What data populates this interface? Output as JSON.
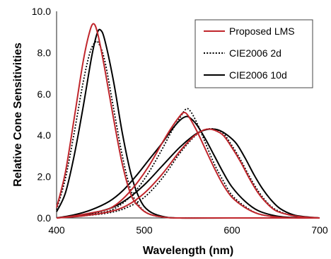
{
  "chart_data": {
    "type": "line",
    "title": "",
    "xlabel": "Wavelength (nm)",
    "ylabel": "Relative Cone Sensitivities",
    "xlim": [
      400,
      700
    ],
    "ylim": [
      0,
      10
    ],
    "xticks": [
      400,
      500,
      600,
      700
    ],
    "yticks": [
      0,
      2,
      4,
      6,
      8,
      10
    ],
    "xtick_labels": [
      "400",
      "500",
      "600",
      "700"
    ],
    "ytick_labels": [
      "0.0",
      "2.0",
      "4.0",
      "6.0",
      "8.0",
      "10.0"
    ],
    "grid": false,
    "legend_position": "top-right",
    "series": [
      {
        "name": "Proposed LMS",
        "color": "#c0262c",
        "style": "solid",
        "curves": [
          [
            [
              400,
              0.5
            ],
            [
              410,
              2.2
            ],
            [
              420,
              4.8
            ],
            [
              430,
              7.5
            ],
            [
              437,
              8.9
            ],
            [
              442,
              9.4
            ],
            [
              447,
              8.9
            ],
            [
              455,
              7.2
            ],
            [
              465,
              4.8
            ],
            [
              475,
              2.6
            ],
            [
              485,
              1.1
            ],
            [
              495,
              0.5
            ],
            [
              505,
              0.2
            ],
            [
              520,
              0.05
            ],
            [
              540,
              0.0
            ],
            [
              600,
              0.0
            ],
            [
              700,
              0.0
            ]
          ],
          [
            [
              400,
              0.0
            ],
            [
              420,
              0.1
            ],
            [
              440,
              0.25
            ],
            [
              460,
              0.45
            ],
            [
              475,
              0.9
            ],
            [
              490,
              1.6
            ],
            [
              505,
              2.5
            ],
            [
              520,
              3.6
            ],
            [
              530,
              4.3
            ],
            [
              540,
              4.9
            ],
            [
              545,
              5.1
            ],
            [
              550,
              4.95
            ],
            [
              560,
              4.2
            ],
            [
              570,
              3.3
            ],
            [
              580,
              2.4
            ],
            [
              590,
              1.6
            ],
            [
              600,
              1.0
            ],
            [
              615,
              0.5
            ],
            [
              630,
              0.2
            ],
            [
              650,
              0.05
            ],
            [
              670,
              0.0
            ],
            [
              700,
              0.0
            ]
          ],
          [
            [
              400,
              0.0
            ],
            [
              430,
              0.1
            ],
            [
              460,
              0.3
            ],
            [
              480,
              0.6
            ],
            [
              500,
              1.2
            ],
            [
              520,
              2.1
            ],
            [
              540,
              3.2
            ],
            [
              555,
              3.9
            ],
            [
              565,
              4.2
            ],
            [
              572,
              4.3
            ],
            [
              580,
              4.25
            ],
            [
              590,
              4.0
            ],
            [
              600,
              3.4
            ],
            [
              610,
              2.7
            ],
            [
              620,
              1.9
            ],
            [
              630,
              1.2
            ],
            [
              640,
              0.7
            ],
            [
              650,
              0.35
            ],
            [
              665,
              0.15
            ],
            [
              680,
              0.05
            ],
            [
              700,
              0.0
            ]
          ]
        ]
      },
      {
        "name": "CIE2006 2d",
        "color": "#000000",
        "style": "dotted",
        "curves": [
          [
            [
              400,
              0.4
            ],
            [
              410,
              1.9
            ],
            [
              420,
              4.1
            ],
            [
              430,
              6.5
            ],
            [
              438,
              8.0
            ],
            [
              444,
              8.5
            ],
            [
              448,
              8.45
            ],
            [
              455,
              7.6
            ],
            [
              465,
              5.3
            ],
            [
              475,
              3.0
            ],
            [
              485,
              1.3
            ],
            [
              495,
              0.55
            ],
            [
              505,
              0.2
            ],
            [
              520,
              0.05
            ],
            [
              540,
              0.0
            ],
            [
              600,
              0.0
            ],
            [
              700,
              0.0
            ]
          ],
          [
            [
              400,
              0.0
            ],
            [
              420,
              0.1
            ],
            [
              440,
              0.2
            ],
            [
              460,
              0.35
            ],
            [
              475,
              0.7
            ],
            [
              490,
              1.3
            ],
            [
              505,
              2.2
            ],
            [
              520,
              3.3
            ],
            [
              530,
              4.1
            ],
            [
              540,
              4.8
            ],
            [
              547,
              5.25
            ],
            [
              552,
              5.2
            ],
            [
              560,
              4.6
            ],
            [
              570,
              3.6
            ],
            [
              580,
              2.6
            ],
            [
              590,
              1.8
            ],
            [
              600,
              1.1
            ],
            [
              615,
              0.55
            ],
            [
              630,
              0.2
            ],
            [
              650,
              0.05
            ],
            [
              670,
              0.0
            ],
            [
              700,
              0.0
            ]
          ],
          [
            [
              400,
              0.0
            ],
            [
              430,
              0.1
            ],
            [
              460,
              0.25
            ],
            [
              480,
              0.5
            ],
            [
              500,
              1.0
            ],
            [
              520,
              1.9
            ],
            [
              540,
              3.1
            ],
            [
              555,
              3.85
            ],
            [
              565,
              4.2
            ],
            [
              572,
              4.3
            ],
            [
              580,
              4.3
            ],
            [
              590,
              4.1
            ],
            [
              600,
              3.5
            ],
            [
              610,
              2.8
            ],
            [
              620,
              2.0
            ],
            [
              630,
              1.3
            ],
            [
              640,
              0.75
            ],
            [
              650,
              0.4
            ],
            [
              665,
              0.15
            ],
            [
              680,
              0.05
            ],
            [
              700,
              0.0
            ]
          ]
        ]
      },
      {
        "name": "CIE2006 10d",
        "color": "#000000",
        "style": "solid",
        "curves": [
          [
            [
              400,
              0.3
            ],
            [
              410,
              1.2
            ],
            [
              420,
              3.0
            ],
            [
              430,
              5.3
            ],
            [
              440,
              7.8
            ],
            [
              446,
              8.9
            ],
            [
              450,
              9.1
            ],
            [
              455,
              8.6
            ],
            [
              465,
              6.6
            ],
            [
              475,
              4.1
            ],
            [
              485,
              2.1
            ],
            [
              495,
              0.9
            ],
            [
              505,
              0.35
            ],
            [
              520,
              0.08
            ],
            [
              540,
              0.0
            ],
            [
              600,
              0.0
            ],
            [
              700,
              0.0
            ]
          ],
          [
            [
              400,
              0.0
            ],
            [
              420,
              0.15
            ],
            [
              440,
              0.4
            ],
            [
              460,
              0.8
            ],
            [
              475,
              1.3
            ],
            [
              490,
              2.0
            ],
            [
              505,
              2.8
            ],
            [
              520,
              3.6
            ],
            [
              530,
              4.2
            ],
            [
              540,
              4.7
            ],
            [
              547,
              4.9
            ],
            [
              552,
              4.85
            ],
            [
              560,
              4.5
            ],
            [
              570,
              3.8
            ],
            [
              580,
              3.0
            ],
            [
              590,
              2.2
            ],
            [
              600,
              1.5
            ],
            [
              615,
              0.8
            ],
            [
              630,
              0.35
            ],
            [
              650,
              0.1
            ],
            [
              670,
              0.02
            ],
            [
              700,
              0.0
            ]
          ],
          [
            [
              400,
              0.0
            ],
            [
              430,
              0.15
            ],
            [
              460,
              0.45
            ],
            [
              480,
              0.9
            ],
            [
              500,
              1.6
            ],
            [
              520,
              2.5
            ],
            [
              540,
              3.4
            ],
            [
              555,
              3.95
            ],
            [
              565,
              4.2
            ],
            [
              575,
              4.3
            ],
            [
              585,
              4.25
            ],
            [
              595,
              4.0
            ],
            [
              605,
              3.6
            ],
            [
              615,
              2.9
            ],
            [
              625,
              2.1
            ],
            [
              635,
              1.4
            ],
            [
              645,
              0.85
            ],
            [
              655,
              0.45
            ],
            [
              670,
              0.15
            ],
            [
              685,
              0.05
            ],
            [
              700,
              0.0
            ]
          ]
        ]
      }
    ]
  }
}
